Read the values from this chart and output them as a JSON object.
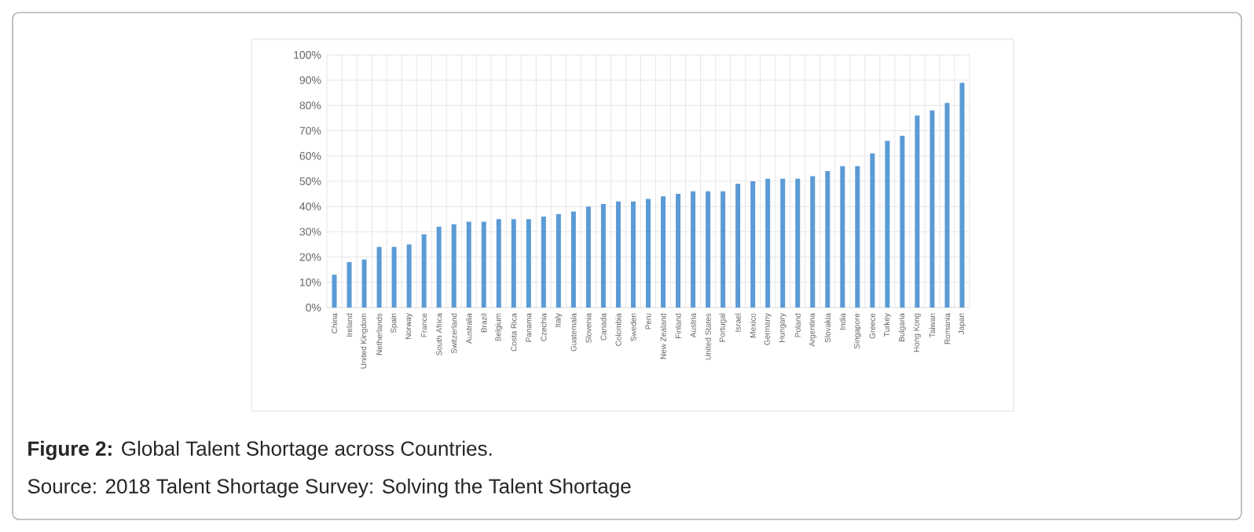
{
  "chart_data": {
    "type": "bar",
    "categories": [
      "China",
      "Ireland",
      "United Kingdom",
      "Netherlands",
      "Spain",
      "Norway",
      "France",
      "South Africa",
      "Switzerland",
      "Australia",
      "Brazil",
      "Belgium",
      "Costa Rica",
      "Panama",
      "Czechia",
      "Italy",
      "Guatemala",
      "Slovenia",
      "Canada",
      "Colombia",
      "Sweden",
      "Peru",
      "New Zealand",
      "Finland",
      "Austria",
      "United States",
      "Portugal",
      "Israel",
      "Mexico",
      "Germany",
      "Hungary",
      "Poland",
      "Argentina",
      "Slovakia",
      "India",
      "Singapore",
      "Greece",
      "Turkey",
      "Bulgaria",
      "Hong Kong",
      "Taiwan",
      "Romania",
      "Japan"
    ],
    "values": [
      13,
      18,
      19,
      24,
      24,
      25,
      29,
      32,
      33,
      34,
      34,
      35,
      35,
      35,
      36,
      37,
      38,
      40,
      41,
      42,
      42,
      43,
      44,
      45,
      46,
      46,
      46,
      49,
      50,
      51,
      51,
      51,
      52,
      54,
      56,
      56,
      61,
      66,
      68,
      76,
      78,
      81,
      89
    ],
    "color": "#5b9bd5",
    "ylim": [
      0,
      100
    ],
    "yticks": [
      {
        "value": 0,
        "label": "0%"
      },
      {
        "value": 10,
        "label": "10%"
      },
      {
        "value": 20,
        "label": "20%"
      },
      {
        "value": 30,
        "label": "30%"
      },
      {
        "value": 40,
        "label": "40%"
      },
      {
        "value": 50,
        "label": "50%"
      },
      {
        "value": 60,
        "label": "60%"
      },
      {
        "value": 70,
        "label": "70%"
      },
      {
        "value": 80,
        "label": "80%"
      },
      {
        "value": 90,
        "label": "90%"
      },
      {
        "value": 100,
        "label": "100%"
      }
    ],
    "grid": true,
    "annotations": [
      "**Figure 2:** Global Talent Shortage across Countries.",
      "Source: 2018 Talent Shortage Survey: Solving the Talent Shortage"
    ]
  }
}
